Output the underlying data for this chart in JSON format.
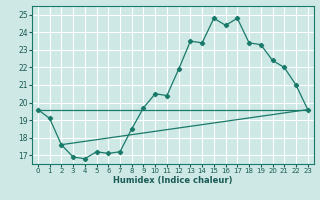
{
  "bg_color": "#cde8e5",
  "grid_color": "#ffffff",
  "line_color": "#1a7a6a",
  "xlabel": "Humidex (Indice chaleur)",
  "xlim": [
    -0.5,
    23.5
  ],
  "ylim": [
    16.5,
    25.5
  ],
  "xticks": [
    0,
    1,
    2,
    3,
    4,
    5,
    6,
    7,
    8,
    9,
    10,
    11,
    12,
    13,
    14,
    15,
    16,
    17,
    18,
    19,
    20,
    21,
    22,
    23
  ],
  "yticks": [
    17,
    18,
    19,
    20,
    21,
    22,
    23,
    24,
    25
  ],
  "s1_x": [
    0,
    1,
    2,
    3,
    4,
    5,
    6,
    7,
    8,
    9,
    10,
    11,
    12,
    13,
    14,
    15,
    16,
    17,
    18,
    19,
    20,
    21,
    22,
    23
  ],
  "s1_y": [
    19.6,
    19.1,
    17.6,
    16.9,
    16.8,
    17.2,
    17.1,
    17.2,
    18.5,
    19.7,
    20.5,
    20.4,
    21.9,
    23.5,
    23.4,
    24.8,
    24.4,
    24.8,
    23.4,
    23.3,
    22.4,
    22.0,
    21.0,
    19.6
  ],
  "line1_x": [
    2,
    23
  ],
  "line1_y": [
    17.6,
    19.6
  ],
  "line2_x": [
    0,
    23
  ],
  "line2_y": [
    19.6,
    19.6
  ]
}
